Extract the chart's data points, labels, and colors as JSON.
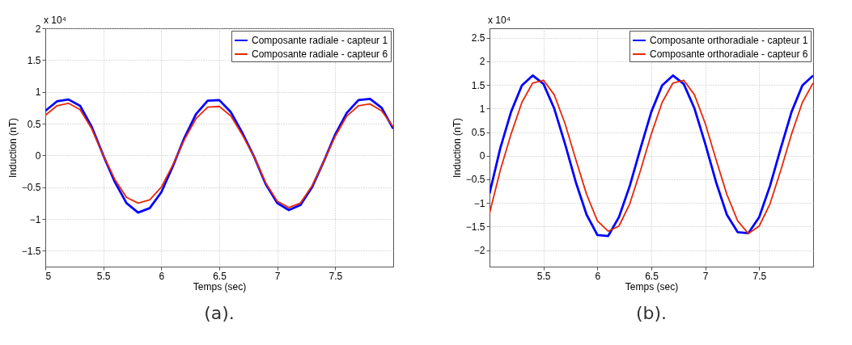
{
  "chart_data": [
    {
      "type": "line",
      "xlabel": "Temps (sec)",
      "ylabel": "Induction (nT)",
      "annotations": [
        "x 10⁴",
        "(a)."
      ],
      "x": [
        5.0,
        5.1,
        5.2,
        5.3,
        5.4,
        5.5,
        5.6,
        5.7,
        5.8,
        5.9,
        6.0,
        6.1,
        6.2,
        6.3,
        6.4,
        6.5,
        6.6,
        6.7,
        6.8,
        6.9,
        7.0,
        7.1,
        7.2,
        7.3,
        7.4,
        7.5,
        7.6,
        7.7,
        7.8,
        7.9,
        8.0
      ],
      "series": [
        {
          "name": "Composante radiale - capteur 1",
          "color": "#0000ff",
          "values": [
            0.7,
            0.85,
            0.88,
            0.78,
            0.45,
            0.0,
            -0.42,
            -0.75,
            -0.9,
            -0.83,
            -0.58,
            -0.17,
            0.28,
            0.65,
            0.86,
            0.87,
            0.68,
            0.35,
            -0.02,
            -0.45,
            -0.75,
            -0.86,
            -0.78,
            -0.5,
            -0.1,
            0.33,
            0.67,
            0.87,
            0.89,
            0.75,
            0.42
          ]
        },
        {
          "name": "Composante radiale - capteur 6",
          "color": "#e8280a",
          "values": [
            0.63,
            0.78,
            0.82,
            0.72,
            0.42,
            0.0,
            -0.38,
            -0.66,
            -0.75,
            -0.7,
            -0.5,
            -0.15,
            0.25,
            0.58,
            0.76,
            0.77,
            0.62,
            0.32,
            -0.02,
            -0.43,
            -0.72,
            -0.82,
            -0.75,
            -0.48,
            -0.1,
            0.3,
            0.62,
            0.78,
            0.81,
            0.7,
            0.45
          ]
        }
      ],
      "xlim": [
        5,
        8
      ],
      "xticks": [
        5,
        5.5,
        6,
        6.5,
        7,
        7.5
      ],
      "ylim": [
        -1.75,
        2
      ],
      "yticks": [
        -1.5,
        -1,
        -0.5,
        0,
        0.5,
        1,
        1.5,
        2
      ],
      "grid": true,
      "legend": "top right",
      "line_style": "solid",
      "marker": "none"
    },
    {
      "type": "line",
      "xlabel": "Temps (sec)",
      "ylabel": "Induction (nT)",
      "annotations": [
        "x 10⁴",
        "(b)."
      ],
      "x": [
        5.0,
        5.1,
        5.2,
        5.3,
        5.4,
        5.5,
        5.6,
        5.7,
        5.8,
        5.9,
        6.0,
        6.1,
        6.2,
        6.3,
        6.4,
        6.5,
        6.6,
        6.7,
        6.8,
        6.9,
        7.0,
        7.1,
        7.2,
        7.3,
        7.4,
        7.5,
        7.6,
        7.7,
        7.8,
        7.9,
        8.0
      ],
      "series": [
        {
          "name": "Composante orthoradiale - capteur 1",
          "color": "#0000ff",
          "values": [
            -0.8,
            0.16,
            0.93,
            1.49,
            1.7,
            1.52,
            1.0,
            0.25,
            -0.56,
            -1.25,
            -1.68,
            -1.7,
            -1.3,
            -0.64,
            0.16,
            0.93,
            1.49,
            1.7,
            1.52,
            1.0,
            0.25,
            -0.56,
            -1.25,
            -1.62,
            -1.64,
            -1.3,
            -0.64,
            0.16,
            0.93,
            1.49,
            1.7
          ]
        },
        {
          "name": "Composante orthoradiale - capteur 6",
          "color": "#e8280a",
          "values": [
            -1.22,
            -0.31,
            0.46,
            1.13,
            1.54,
            1.6,
            1.29,
            0.68,
            -0.08,
            -0.82,
            -1.38,
            -1.6,
            -1.49,
            -1.02,
            -0.31,
            0.46,
            1.13,
            1.54,
            1.6,
            1.29,
            0.68,
            -0.08,
            -0.82,
            -1.38,
            -1.65,
            -1.49,
            -1.02,
            -0.31,
            0.46,
            1.13,
            1.54
          ]
        }
      ],
      "xlim": [
        5,
        8
      ],
      "xticks": [
        5.5,
        6,
        6.5,
        7,
        7.5
      ],
      "ylim": [
        -2.35,
        2.7
      ],
      "yticks": [
        -2,
        -1.5,
        -1,
        -0.5,
        0,
        0.5,
        1,
        1.5,
        2,
        2.5
      ],
      "grid": true,
      "legend": "top right",
      "line_style": "solid",
      "marker": "none"
    }
  ]
}
